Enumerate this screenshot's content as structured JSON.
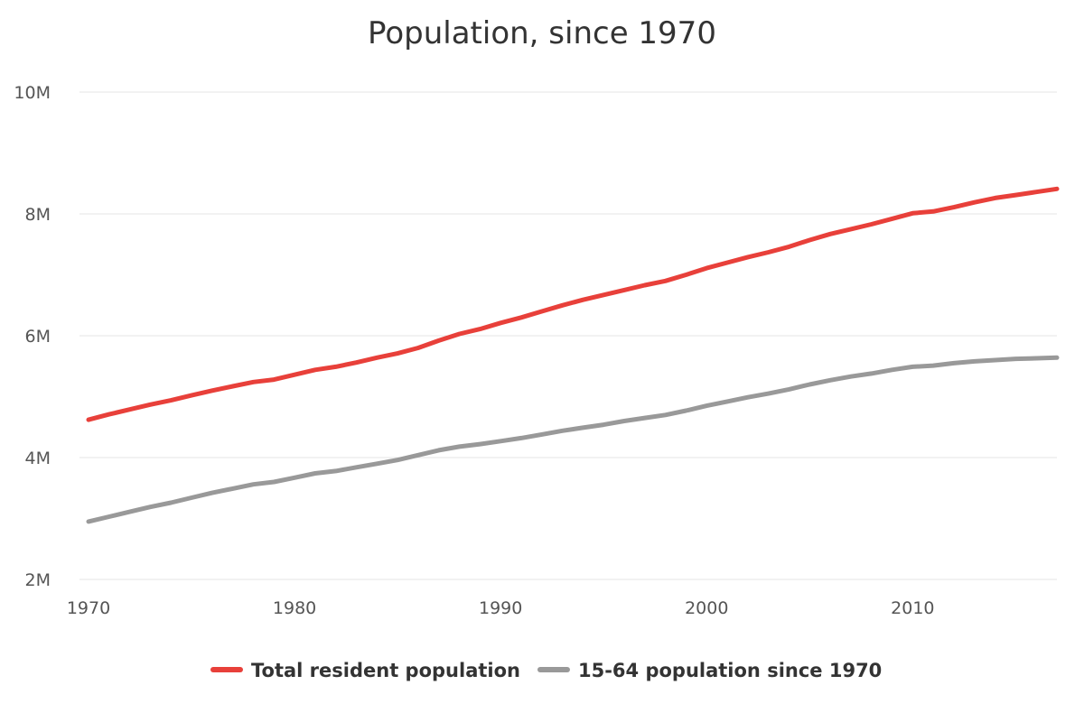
{
  "chart_data": {
    "type": "line",
    "title": "Population, since 1970",
    "xlabel": "",
    "ylabel": "",
    "x_ticks": [
      "1970",
      "1980",
      "1990",
      "2000",
      "2010"
    ],
    "y_ticks": [
      "2M",
      "4M",
      "6M",
      "8M",
      "10M"
    ],
    "xlim": [
      1970,
      2017
    ],
    "ylim": [
      2000000,
      10000000
    ],
    "grid": true,
    "legend_position": "bottom",
    "x": [
      1970,
      1971,
      1972,
      1973,
      1974,
      1975,
      1976,
      1977,
      1978,
      1979,
      1980,
      1981,
      1982,
      1983,
      1984,
      1985,
      1986,
      1987,
      1988,
      1989,
      1990,
      1991,
      1992,
      1993,
      1994,
      1995,
      1996,
      1997,
      1998,
      1999,
      2000,
      2001,
      2002,
      2003,
      2004,
      2005,
      2006,
      2007,
      2008,
      2009,
      2010,
      2011,
      2012,
      2013,
      2014,
      2015,
      2016,
      2017
    ],
    "series": [
      {
        "name": "Total resident population",
        "color": "#e8403a",
        "values": [
          4620000,
          4710000,
          4790000,
          4870000,
          4940000,
          5020000,
          5100000,
          5170000,
          5240000,
          5280000,
          5360000,
          5440000,
          5490000,
          5560000,
          5640000,
          5710000,
          5800000,
          5920000,
          6030000,
          6110000,
          6210000,
          6300000,
          6400000,
          6500000,
          6590000,
          6670000,
          6750000,
          6830000,
          6900000,
          7000000,
          7110000,
          7200000,
          7290000,
          7370000,
          7460000,
          7570000,
          7670000,
          7750000,
          7830000,
          7920000,
          8010000,
          8040000,
          8110000,
          8190000,
          8260000,
          8310000,
          8360000,
          8410000
        ]
      },
      {
        "name": "15-64 population since 1970",
        "color": "#999999",
        "values": [
          2950000,
          3030000,
          3110000,
          3190000,
          3260000,
          3340000,
          3420000,
          3490000,
          3560000,
          3600000,
          3670000,
          3740000,
          3780000,
          3840000,
          3900000,
          3960000,
          4040000,
          4120000,
          4180000,
          4220000,
          4270000,
          4320000,
          4380000,
          4440000,
          4490000,
          4540000,
          4600000,
          4650000,
          4700000,
          4770000,
          4850000,
          4920000,
          4990000,
          5050000,
          5120000,
          5200000,
          5270000,
          5330000,
          5380000,
          5440000,
          5490000,
          5510000,
          5550000,
          5580000,
          5600000,
          5620000,
          5630000,
          5640000
        ]
      }
    ]
  }
}
